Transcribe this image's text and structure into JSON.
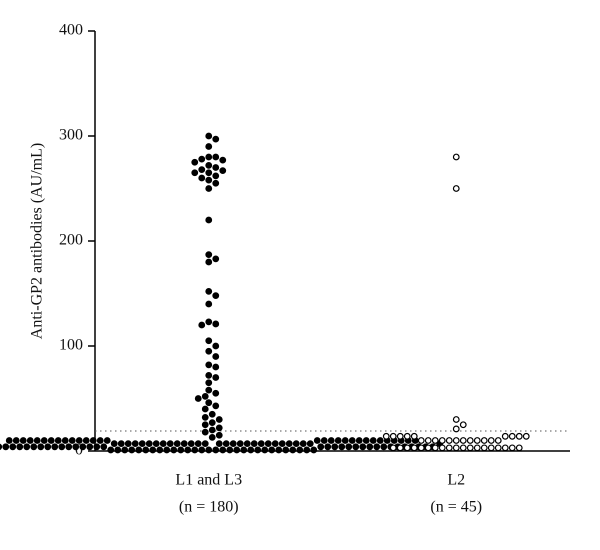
{
  "chart_data": {
    "type": "dotplot",
    "y_label": "Anti-GP2 antibodies (AU/mL)",
    "ylim": [
      0,
      400
    ],
    "yticks": [
      0,
      100,
      200,
      300,
      400
    ],
    "cutoff": 19,
    "groups": [
      {
        "name": "L1 and L3",
        "note": "(n = 180)",
        "filled": true,
        "color": "#000000",
        "values": [
          300,
          297,
          290,
          280,
          280,
          278,
          277,
          275,
          272,
          270,
          268,
          267,
          265,
          265,
          262,
          260,
          258,
          255,
          250,
          220,
          187,
          183,
          180,
          152,
          148,
          140,
          123,
          121,
          120,
          105,
          100,
          95,
          90,
          82,
          80,
          72,
          70,
          65,
          58,
          55,
          52,
          50,
          46,
          43,
          40,
          35,
          32,
          30,
          27,
          25,
          22,
          20,
          18,
          15,
          13,
          1,
          1,
          1,
          1,
          1,
          1,
          1,
          1,
          1,
          1,
          1,
          1,
          1,
          1,
          1,
          1,
          1,
          1,
          1,
          1,
          1,
          1,
          1,
          1,
          1,
          1,
          1,
          1,
          1,
          1,
          4,
          4,
          4,
          4,
          4,
          4,
          4,
          4,
          4,
          4,
          4,
          4,
          4,
          4,
          4,
          4,
          4,
          4,
          4,
          4,
          4,
          4,
          4,
          4,
          4,
          4,
          4,
          4,
          4,
          4,
          4,
          4,
          4,
          4,
          4,
          7,
          7,
          7,
          7,
          7,
          7,
          7,
          7,
          7,
          7,
          7,
          7,
          7,
          7,
          7,
          7,
          7,
          7,
          7,
          7,
          7,
          7,
          7,
          7,
          7,
          7,
          7,
          7,
          7,
          7,
          10,
          10,
          10,
          10,
          10,
          10,
          10,
          10,
          10,
          10,
          10,
          10,
          10,
          10,
          10,
          10,
          10,
          10,
          10,
          10,
          10,
          10,
          10,
          10,
          10,
          10,
          10,
          10,
          10,
          10
        ]
      },
      {
        "name": "L2",
        "note": "(n = 45)",
        "filled": false,
        "color": "#000000",
        "values": [
          280,
          250,
          30,
          25,
          21,
          3,
          3,
          3,
          3,
          3,
          3,
          3,
          3,
          3,
          3,
          3,
          3,
          3,
          3,
          3,
          3,
          3,
          3,
          3,
          10,
          10,
          10,
          10,
          10,
          10,
          10,
          10,
          10,
          10,
          10,
          10,
          14,
          14,
          14,
          14,
          14,
          14,
          14,
          14,
          14
        ]
      }
    ]
  }
}
